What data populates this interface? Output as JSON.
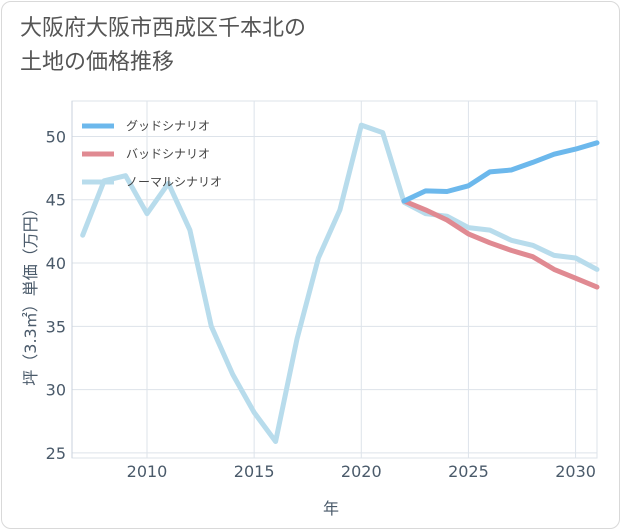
{
  "title": "大阪府大阪市西成区千本北の\n土地の価格推移",
  "chart_data": {
    "type": "line",
    "xlabel": "年",
    "ylabel": "坪（3.3㎡）単価（万円）",
    "xlim": [
      2006.5,
      2031
    ],
    "ylim": [
      24.6,
      52.8
    ],
    "xticks": [
      2010,
      2015,
      2020,
      2025,
      2030
    ],
    "yticks": [
      25,
      30,
      35,
      40,
      45,
      50
    ],
    "grid": true,
    "legend_position": "top-left",
    "series": [
      {
        "name": "グッドシナリオ",
        "color": "#6cb8ec",
        "x": [
          2022,
          2023,
          2024,
          2025,
          2026,
          2027,
          2028,
          2029,
          2030,
          2031
        ],
        "y": [
          44.9,
          45.7,
          45.65,
          46.1,
          47.2,
          47.35,
          47.95,
          48.6,
          49.0,
          49.5
        ]
      },
      {
        "name": "バッドシナリオ",
        "color": "#e08a92",
        "x": [
          2022,
          2023,
          2024,
          2025,
          2026,
          2027,
          2028,
          2029,
          2030,
          2031
        ],
        "y": [
          44.9,
          44.2,
          43.4,
          42.3,
          41.6,
          41.0,
          40.5,
          39.5,
          38.8,
          38.1
        ]
      },
      {
        "name": "ノーマルシナリオ",
        "color": "#b8dcec",
        "x": [
          2007,
          2008,
          2009,
          2010,
          2011,
          2012,
          2013,
          2014,
          2015,
          2016,
          2017,
          2018,
          2019,
          2020,
          2021,
          2022,
          2023,
          2024,
          2025,
          2026,
          2027,
          2028,
          2029,
          2030,
          2031
        ],
        "y": [
          42.2,
          46.5,
          46.9,
          43.9,
          46.3,
          42.6,
          35.0,
          31.2,
          28.2,
          25.9,
          34.0,
          40.4,
          44.2,
          50.9,
          50.3,
          44.8,
          43.9,
          43.7,
          42.8,
          42.6,
          41.8,
          41.4,
          40.6,
          40.4,
          39.5
        ]
      }
    ]
  }
}
